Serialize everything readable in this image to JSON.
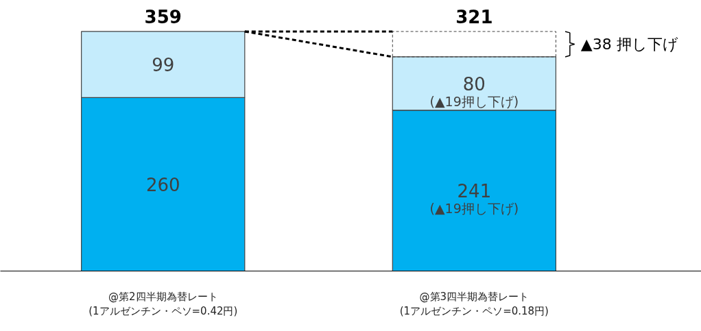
{
  "chart_data": {
    "type": "bar",
    "stacked": true,
    "categories": [
      "@第2四半期為替レート\n(1アルゼンチン・ペソ=0.42円)",
      "@第3四半期為替レート\n(1アルゼンチン・ペソ=0.18円)"
    ],
    "series": [
      {
        "color": "#00b0f0",
        "values": [
          260,
          241
        ]
      },
      {
        "color": "#c5ecfc",
        "values": [
          99,
          80
        ]
      }
    ],
    "totals": [
      "359",
      "321"
    ],
    "data_labels": true,
    "annotations": [
      "(▲19押し下げ)",
      "(▲19押し下げ)",
      "▲38 押し下げ"
    ],
    "tick_labels": "x",
    "grid": false
  }
}
